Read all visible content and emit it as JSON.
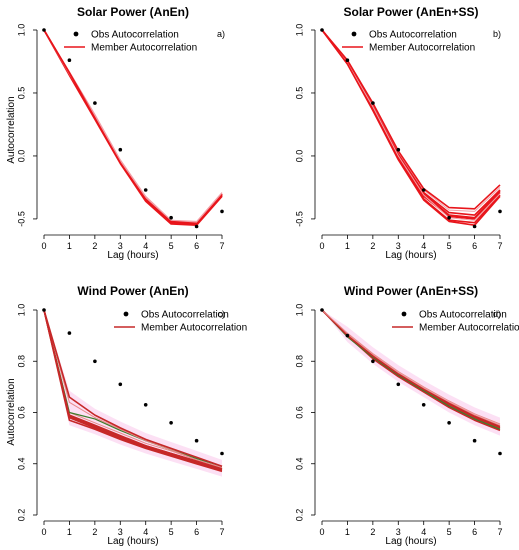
{
  "chart_data": [
    {
      "type": "line",
      "title": "Solar Power (AnEn)",
      "panel_tag": "a)",
      "xlabel": "Lag (hours)",
      "ylabel": "Autocorrelation",
      "x": [
        0,
        1,
        2,
        3,
        4,
        5,
        6,
        7
      ],
      "xticks": [
        "0",
        "1",
        "2",
        "3",
        "4",
        "5",
        "6",
        "7"
      ],
      "yticks": [
        -0.5,
        0.0,
        0.5,
        1.0
      ],
      "ytick_labels": [
        "-0.5",
        "0.0",
        "0.5",
        "1.0"
      ],
      "ylim": [
        -0.58,
        1.0
      ],
      "legend": {
        "position": "top-left",
        "obs_label": "Obs Autocorrelation",
        "member_label": "Member Autocorrelation"
      },
      "obs": [
        1.0,
        0.76,
        0.42,
        0.05,
        -0.27,
        -0.49,
        -0.56,
        -0.44
      ],
      "members": [
        [
          1.0,
          0.66,
          0.32,
          -0.04,
          -0.33,
          -0.52,
          -0.53,
          -0.3
        ],
        [
          1.0,
          0.65,
          0.3,
          -0.05,
          -0.35,
          -0.53,
          -0.54,
          -0.31
        ],
        [
          1.0,
          0.67,
          0.33,
          -0.03,
          -0.32,
          -0.51,
          -0.52,
          -0.29
        ],
        [
          1.0,
          0.64,
          0.29,
          -0.06,
          -0.36,
          -0.54,
          -0.55,
          -0.32
        ],
        [
          1.0,
          0.66,
          0.31,
          -0.05,
          -0.34,
          -0.52,
          -0.535,
          -0.305
        ],
        [
          1.0,
          0.65,
          0.32,
          -0.04,
          -0.33,
          -0.51,
          -0.525,
          -0.295
        ],
        [
          1.0,
          0.66,
          0.3,
          -0.055,
          -0.345,
          -0.535,
          -0.545,
          -0.315
        ]
      ],
      "colors": {
        "member": "#e8151b",
        "member_light": "#f2a0a8",
        "obs": "#000000"
      }
    },
    {
      "type": "line",
      "title": "Solar Power (AnEn+SS)",
      "panel_tag": "b)",
      "xlabel": "Lag (hours)",
      "ylabel": "",
      "x": [
        0,
        1,
        2,
        3,
        4,
        5,
        6,
        7
      ],
      "xticks": [
        "0",
        "1",
        "2",
        "3",
        "4",
        "5",
        "6",
        "7"
      ],
      "yticks": [
        -0.5,
        0.0,
        0.5,
        1.0
      ],
      "ytick_labels": [
        "-0.5",
        "0.0",
        "0.5",
        "1.0"
      ],
      "ylim": [
        -0.58,
        1.0
      ],
      "legend": {
        "position": "top-left",
        "obs_label": "Obs Autocorrelation",
        "member_label": "Member Autocorrelation"
      },
      "obs": [
        1.0,
        0.76,
        0.42,
        0.05,
        -0.27,
        -0.49,
        -0.56,
        -0.44
      ],
      "members": [
        [
          1.0,
          0.75,
          0.4,
          0.02,
          -0.29,
          -0.45,
          -0.47,
          -0.27
        ],
        [
          1.0,
          0.74,
          0.38,
          0.0,
          -0.32,
          -0.48,
          -0.5,
          -0.29
        ],
        [
          1.0,
          0.76,
          0.41,
          0.03,
          -0.27,
          -0.43,
          -0.44,
          -0.25
        ],
        [
          1.0,
          0.73,
          0.37,
          -0.02,
          -0.34,
          -0.51,
          -0.53,
          -0.31
        ],
        [
          1.0,
          0.75,
          0.39,
          0.01,
          -0.3,
          -0.47,
          -0.49,
          -0.28
        ],
        [
          1.0,
          0.74,
          0.39,
          0.0,
          -0.31,
          -0.49,
          -0.51,
          -0.3
        ],
        [
          1.0,
          0.76,
          0.42,
          0.04,
          -0.26,
          -0.41,
          -0.42,
          -0.23
        ],
        [
          1.0,
          0.73,
          0.36,
          -0.03,
          -0.35,
          -0.52,
          -0.55,
          -0.32
        ]
      ],
      "colors": {
        "member": "#e8151b",
        "member_light": "#f2a0a8",
        "obs": "#000000"
      }
    },
    {
      "type": "line",
      "title": "Wind Power (AnEn)",
      "panel_tag": "c)",
      "xlabel": "Lag (hours)",
      "ylabel": "Autocorrelation",
      "x": [
        0,
        1,
        2,
        3,
        4,
        5,
        6,
        7
      ],
      "xticks": [
        "0",
        "1",
        "2",
        "3",
        "4",
        "5",
        "6",
        "7"
      ],
      "yticks": [
        0.2,
        0.4,
        0.6,
        0.8,
        1.0
      ],
      "ytick_labels": [
        "0.2",
        "0.4",
        "0.6",
        "0.8",
        "1.0"
      ],
      "ylim": [
        0.2,
        1.0
      ],
      "legend": {
        "position": "top-right",
        "obs_label": "Obs Autocorrelation",
        "member_label": "Member Autocorrelation"
      },
      "obs": [
        1.0,
        0.91,
        0.8,
        0.71,
        0.63,
        0.56,
        0.49,
        0.44
      ],
      "members": [
        [
          1.0,
          0.59,
          0.55,
          0.51,
          0.47,
          0.44,
          0.41,
          0.38
        ],
        [
          1.0,
          0.58,
          0.54,
          0.5,
          0.465,
          0.435,
          0.405,
          0.375
        ],
        [
          1.0,
          0.6,
          0.56,
          0.52,
          0.48,
          0.45,
          0.415,
          0.385
        ],
        [
          1.0,
          0.6,
          0.575,
          0.53,
          0.49,
          0.455,
          0.42,
          0.39
        ],
        [
          1.0,
          0.57,
          0.535,
          0.495,
          0.46,
          0.43,
          0.4,
          0.37
        ],
        [
          1.0,
          0.64,
          0.58,
          0.535,
          0.49,
          0.455,
          0.415,
          0.385
        ],
        [
          1.0,
          0.66,
          0.59,
          0.54,
          0.495,
          0.46,
          0.425,
          0.39
        ],
        [
          1.0,
          0.585,
          0.545,
          0.505,
          0.47,
          0.44,
          0.41,
          0.38
        ]
      ],
      "colors": {
        "member": "#c62828",
        "member_light": "#e88a8a",
        "accent_green": "#3a7d2a",
        "shade": "#fbd6f0",
        "obs": "#000000"
      }
    },
    {
      "type": "line",
      "title": "Wind Power (AnEn+SS)",
      "panel_tag": "d)",
      "xlabel": "Lag (hours)",
      "ylabel": "",
      "x": [
        0,
        1,
        2,
        3,
        4,
        5,
        6,
        7
      ],
      "xticks": [
        "0",
        "1",
        "2",
        "3",
        "4",
        "5",
        "6",
        "7"
      ],
      "yticks": [
        0.2,
        0.4,
        0.6,
        0.8,
        1.0
      ],
      "ytick_labels": [
        "0.2",
        "0.4",
        "0.6",
        "0.8",
        "1.0"
      ],
      "ylim": [
        0.2,
        1.0
      ],
      "legend": {
        "position": "top-right",
        "obs_label": "Obs Autocorrelation",
        "member_label": "Member Autocorrelation"
      },
      "obs": [
        1.0,
        0.9,
        0.8,
        0.71,
        0.63,
        0.56,
        0.49,
        0.44
      ],
      "members": [
        [
          1.0,
          0.9,
          0.82,
          0.75,
          0.69,
          0.63,
          0.58,
          0.54
        ],
        [
          1.0,
          0.9,
          0.81,
          0.74,
          0.68,
          0.62,
          0.57,
          0.53
        ],
        [
          1.0,
          0.905,
          0.825,
          0.755,
          0.695,
          0.64,
          0.59,
          0.55
        ],
        [
          1.0,
          0.895,
          0.815,
          0.745,
          0.685,
          0.625,
          0.575,
          0.535
        ],
        [
          1.0,
          0.9,
          0.82,
          0.75,
          0.69,
          0.635,
          0.585,
          0.545
        ],
        [
          1.0,
          0.91,
          0.83,
          0.76,
          0.7,
          0.645,
          0.595,
          0.555
        ]
      ],
      "colors": {
        "member": "#c62828",
        "member_light": "#e88a8a",
        "accent_green": "#3a7d2a",
        "shade": "#fbd6f0",
        "obs": "#000000"
      }
    }
  ]
}
